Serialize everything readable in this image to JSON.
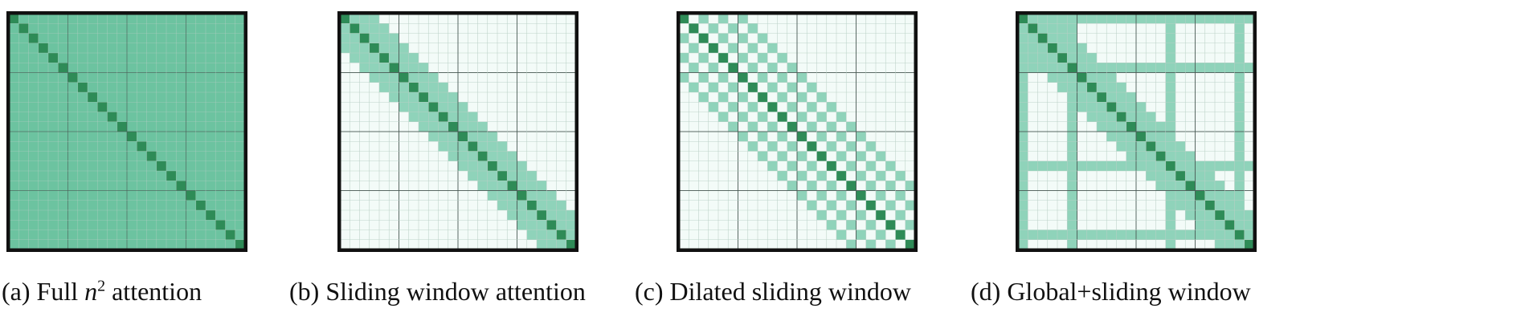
{
  "figure": {
    "panels": [
      {
        "id": "a",
        "pattern": "full",
        "caption_prefix": "(a) Full ",
        "caption_math": "n",
        "caption_superscript": "2",
        "caption_suffix": " attention"
      },
      {
        "id": "b",
        "pattern": "sliding",
        "caption": "(b) Sliding window attention"
      },
      {
        "id": "c",
        "pattern": "dilated",
        "caption": "(c) Dilated sliding window"
      },
      {
        "id": "d",
        "pattern": "global_sliding",
        "caption": "(d) Global+sliding window"
      }
    ],
    "matrix": {
      "size": 24,
      "window_half_width": 3,
      "dilation": 2,
      "global_indices": [
        0,
        5,
        15,
        22
      ]
    },
    "colors": {
      "diagonal": "#2e8b57",
      "attended": "#6cc3a0",
      "window": "#8fd3ba",
      "empty": "#f3fbf8",
      "grid_light": "#b9cfc6",
      "grid_dark": "#4a5a55",
      "border": "#111111"
    }
  }
}
